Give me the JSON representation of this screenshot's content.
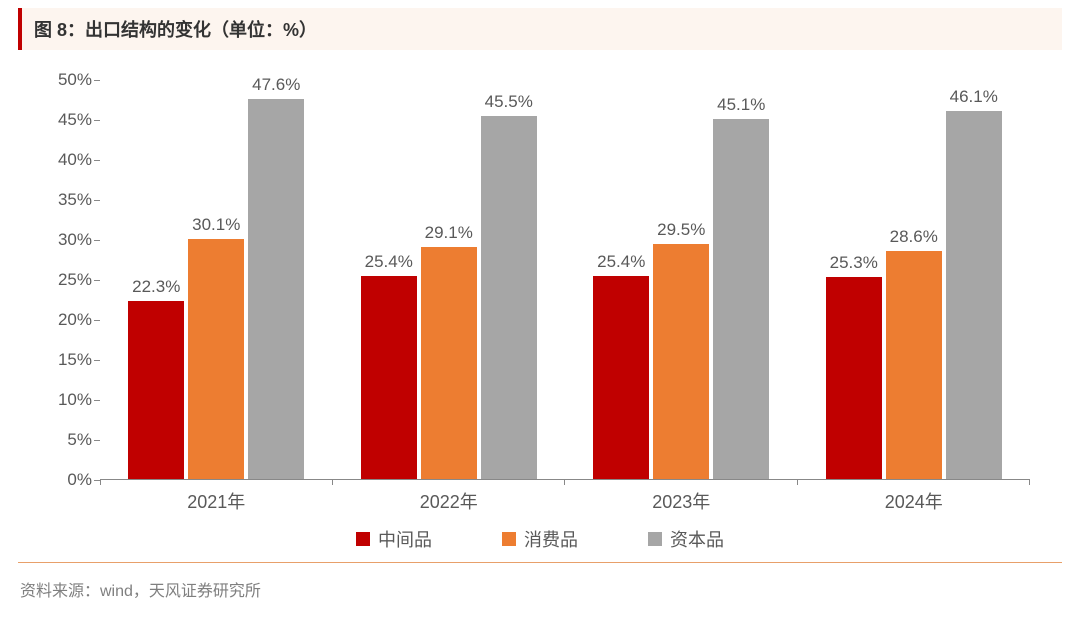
{
  "header": {
    "title": "图 8：出口结构的变化（单位：%）"
  },
  "chart": {
    "type": "bar",
    "y_axis": {
      "min": 0,
      "max": 50,
      "step": 5,
      "ticks": [
        0,
        5,
        10,
        15,
        20,
        25,
        30,
        35,
        40,
        45,
        50
      ],
      "tick_labels": [
        "0%",
        "5%",
        "10%",
        "15%",
        "20%",
        "25%",
        "30%",
        "35%",
        "40%",
        "45%",
        "50%"
      ],
      "label_fontsize": 17,
      "label_color": "#595959"
    },
    "categories": [
      "2021年",
      "2022年",
      "2023年",
      "2024年"
    ],
    "series": [
      {
        "name": "中间品",
        "color": "#c00000",
        "values": [
          22.3,
          25.4,
          25.4,
          25.3
        ],
        "labels": [
          "22.3%",
          "25.4%",
          "25.4%",
          "25.3%"
        ]
      },
      {
        "name": "消费品",
        "color": "#ed7d31",
        "values": [
          30.1,
          29.1,
          29.5,
          28.6
        ],
        "labels": [
          "30.1%",
          "29.1%",
          "29.5%",
          "28.6%"
        ]
      },
      {
        "name": "资本品",
        "color": "#a6a6a6",
        "values": [
          47.6,
          45.5,
          45.1,
          46.1
        ],
        "labels": [
          "47.6%",
          "45.5%",
          "45.1%",
          "46.1%"
        ]
      }
    ],
    "x_label_fontsize": 18,
    "bar_label_fontsize": 17,
    "background_color": "#ffffff"
  },
  "legend": {
    "items": [
      {
        "label": "中间品",
        "color": "#c00000"
      },
      {
        "label": "消费品",
        "color": "#ed7d31"
      },
      {
        "label": "资本品",
        "color": "#a6a6a6"
      }
    ]
  },
  "footer": {
    "source_text": "资料来源：wind，天风证券研究所"
  },
  "colors": {
    "header_bg": "#fdf5ef",
    "header_border": "#c00000",
    "footer_border": "#e8a06a",
    "axis_line": "#888888",
    "text_muted": "#595959",
    "text_footer": "#7f7f7f"
  }
}
